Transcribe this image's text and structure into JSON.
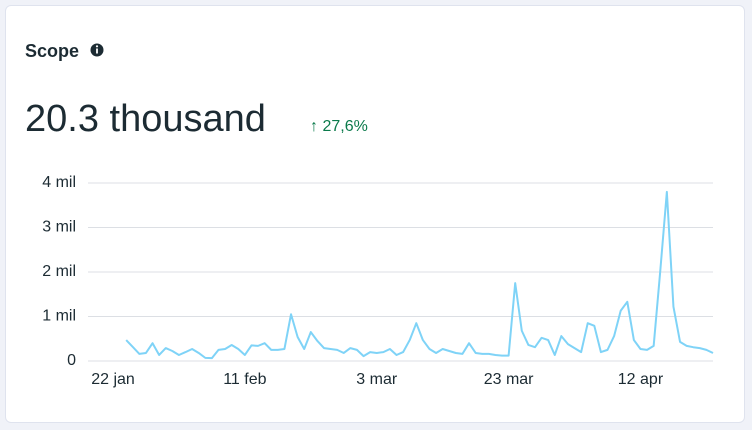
{
  "chart_data": {
    "type": "line",
    "title": "Scope",
    "summary_value": "20.3 thousand",
    "change": "↑ 27,6%",
    "categories": [
      "22 jan",
      null,
      null,
      null,
      null,
      null,
      null,
      null,
      null,
      null,
      null,
      null,
      null,
      null,
      null,
      null,
      null,
      null,
      null,
      null,
      "11 feb",
      null,
      null,
      null,
      null,
      null,
      null,
      null,
      null,
      null,
      null,
      null,
      null,
      null,
      null,
      null,
      null,
      null,
      null,
      null,
      "3 mar",
      null,
      null,
      null,
      null,
      null,
      null,
      null,
      null,
      null,
      null,
      null,
      null,
      null,
      null,
      null,
      null,
      null,
      null,
      null,
      "23 mar",
      null,
      null,
      null,
      null,
      null,
      null,
      null,
      null,
      null,
      null,
      null,
      null,
      null,
      null,
      null,
      null,
      null,
      null,
      null,
      "12 apr",
      null,
      null,
      null,
      null,
      null,
      null,
      null,
      null,
      null,
      null,
      null
    ],
    "series": [
      {
        "color": "#7fd3f7",
        "values": [
          null,
          null,
          470,
          315,
          160,
          180,
          400,
          135,
          290,
          225,
          135,
          200,
          270,
          180,
          70,
          65,
          250,
          270,
          360,
          270,
          135,
          350,
          340,
          400,
          250,
          250,
          270,
          1050,
          540,
          270,
          650,
          450,
          290,
          270,
          250,
          180,
          290,
          250,
          110,
          200,
          180,
          200,
          270,
          135,
          200,
          470,
          850,
          470,
          270,
          180,
          270,
          225,
          180,
          160,
          400,
          180,
          160,
          160,
          135,
          120,
          120,
          1750,
          680,
          360,
          310,
          520,
          470,
          135,
          560,
          380,
          290,
          200,
          850,
          790,
          200,
          250,
          560,
          1130,
          1330,
          470,
          270,
          250,
          340,
          2020,
          3800,
          1220,
          430,
          340,
          310,
          290,
          250,
          180
        ]
      }
    ],
    "ylim": [
      0,
      4000
    ],
    "yticks": [
      {
        "value": 0,
        "label": "0"
      },
      {
        "value": 1000,
        "label": "1 mil"
      },
      {
        "value": 2000,
        "label": "2 mil"
      },
      {
        "value": 3000,
        "label": "3 mil"
      },
      {
        "value": 4000,
        "label": "4 mil"
      }
    ],
    "grid": true
  }
}
